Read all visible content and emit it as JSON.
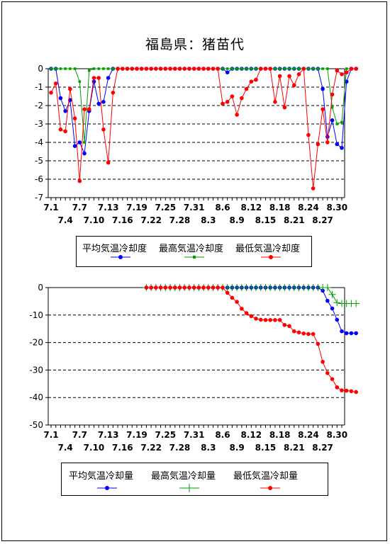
{
  "page_title": "福島県：猪苗代",
  "chart_data": [
    {
      "type": "line",
      "ylim": [
        -7,
        0
      ],
      "yticks": [
        0,
        -1,
        -2,
        -3,
        -4,
        -5,
        -6,
        -7
      ],
      "x_tick_labels_row1": [
        "7.1",
        "7.7",
        "7.13",
        "7.19",
        "7.25",
        "7.31",
        "8.6",
        "8.12",
        "8.18",
        "8.24",
        "8.30"
      ],
      "x_tick_labels_row2": [
        "7.4",
        "7.10",
        "7.16",
        "7.22",
        "7.28",
        "8.3",
        "8.9",
        "8.15",
        "8.21",
        "8.27"
      ],
      "grid": "horizontal dashed",
      "legend_entries": [
        "平均気温冷却度",
        "最高気温冷却度",
        "最低気温冷却度"
      ],
      "series": [
        {
          "name": "平均気温冷却度",
          "color": "#0000ff",
          "marker": "circle",
          "values": [
            0,
            0,
            -1.6,
            -2.3,
            -1.7,
            -4.2,
            -4.0,
            -4.6,
            -2.3,
            -0.7,
            -1.9,
            -1.8,
            -0.5,
            0,
            0,
            0,
            0,
            0,
            0,
            0,
            0,
            0,
            0,
            0,
            0,
            0,
            0,
            0,
            0,
            0,
            0,
            0,
            0,
            0,
            0,
            0,
            0,
            -0.2,
            0,
            0,
            0,
            0,
            0,
            0,
            0,
            0,
            0,
            0,
            0,
            0,
            0,
            0,
            0,
            0,
            0,
            0,
            0,
            -1.1,
            -3.7,
            -2.8,
            -4.1,
            -4.3,
            -0.7,
            0,
            0
          ]
        },
        {
          "name": "最高気温冷却度",
          "color": "#00a000",
          "marker": "square",
          "values": [
            0,
            0,
            0,
            0,
            0,
            0,
            -0.7,
            -4.0,
            -0.1,
            0,
            0,
            0,
            0,
            0,
            0,
            0,
            0,
            0,
            0,
            0,
            0,
            0,
            0,
            0,
            0,
            0,
            0,
            0,
            0,
            0,
            0,
            0,
            0,
            0,
            0,
            0,
            0,
            0,
            0,
            0,
            0,
            0,
            0,
            0,
            0,
            0,
            0,
            0,
            0,
            0,
            0,
            0,
            0,
            0,
            0,
            0,
            0,
            0,
            0,
            -2.1,
            -3.0,
            -2.9,
            0,
            0,
            0
          ]
        },
        {
          "name": "最低気温冷却度",
          "color": "#ff0000",
          "marker": "circle",
          "values": [
            -1.3,
            -0.8,
            -3.3,
            -3.4,
            -1.1,
            -2.7,
            -6.1,
            -2.2,
            -2.2,
            -0.5,
            -0.5,
            -3.3,
            -5.1,
            -1.3,
            0,
            0,
            0,
            0,
            0,
            0,
            0,
            0,
            0,
            0,
            0,
            0,
            0,
            0,
            0,
            0,
            0,
            0,
            0,
            0,
            0,
            0,
            -1.9,
            -1.8,
            -1.5,
            -2.5,
            -1.6,
            -1.1,
            -0.7,
            -0.6,
            0,
            0,
            0,
            -1.8,
            -0.4,
            -2.1,
            -0.4,
            -0.9,
            -0.3,
            0,
            -3.6,
            -6.5,
            -4.1,
            -2.2,
            -4.0,
            -1.4,
            -0.1,
            -0.3,
            -0.2,
            0,
            0
          ]
        }
      ]
    },
    {
      "type": "line",
      "ylim": [
        -50,
        0
      ],
      "yticks": [
        0,
        -10,
        -20,
        -30,
        -40,
        -50
      ],
      "x_tick_labels_row1": [
        "7.1",
        "7.7",
        "7.13",
        "7.19",
        "7.25",
        "7.31",
        "8.6",
        "8.12",
        "8.18",
        "8.24",
        "8.30"
      ],
      "x_tick_labels_row2": [
        "7.4",
        "7.10",
        "7.16",
        "7.22",
        "7.28",
        "8.3",
        "8.9",
        "8.15",
        "8.21",
        "8.27"
      ],
      "grid": "horizontal dashed",
      "legend_entries": [
        "平均気温冷却量",
        "最高気温冷却量",
        "最低気温冷却量"
      ],
      "series": [
        {
          "name": "平均気温冷却量",
          "color": "#0000ff",
          "marker": "circle",
          "start_index": 20,
          "values": [
            0,
            0,
            0,
            0,
            0,
            0,
            0,
            0,
            0,
            0,
            0,
            0,
            0,
            0,
            0,
            0,
            0,
            0,
            0,
            0,
            0,
            0,
            0,
            0,
            0,
            0,
            0,
            0,
            0,
            0,
            0,
            0,
            0,
            0,
            0,
            0,
            0,
            -1.1,
            -4.8,
            -7.6,
            -11.7,
            -15.9,
            -16.6,
            -16.6,
            -16.6
          ]
        },
        {
          "name": "最高気温冷却量",
          "color": "#00a000",
          "marker": "plus",
          "start_index": 20,
          "values": [
            0,
            0,
            0,
            0,
            0,
            0,
            0,
            0,
            0,
            0,
            0,
            0,
            0,
            0,
            0,
            0,
            0,
            0,
            0,
            0,
            0,
            0,
            0,
            0,
            0,
            0,
            0,
            0,
            0,
            0,
            0,
            0,
            0,
            0,
            0,
            0,
            0,
            0,
            0,
            -2.5,
            -5.5,
            -5.8,
            -5.8,
            -5.8,
            -5.8
          ]
        },
        {
          "name": "最低気温冷却量",
          "color": "#ff0000",
          "marker": "circle",
          "start_index": 20,
          "values": [
            0,
            0,
            0,
            0,
            0,
            0,
            0,
            0,
            0,
            0,
            0,
            0,
            0,
            0,
            0,
            0,
            0,
            -1.9,
            -3.7,
            -5.2,
            -7.7,
            -9.3,
            -10.4,
            -11.3,
            -11.7,
            -11.8,
            -11.8,
            -11.8,
            -11.8,
            -13.6,
            -14.0,
            -15.9,
            -16.3,
            -16.7,
            -16.9,
            -16.9,
            -20.5,
            -27.0,
            -31.1,
            -33.3,
            -36.3,
            -37.4,
            -37.5,
            -37.7,
            -38.0
          ]
        }
      ]
    }
  ]
}
